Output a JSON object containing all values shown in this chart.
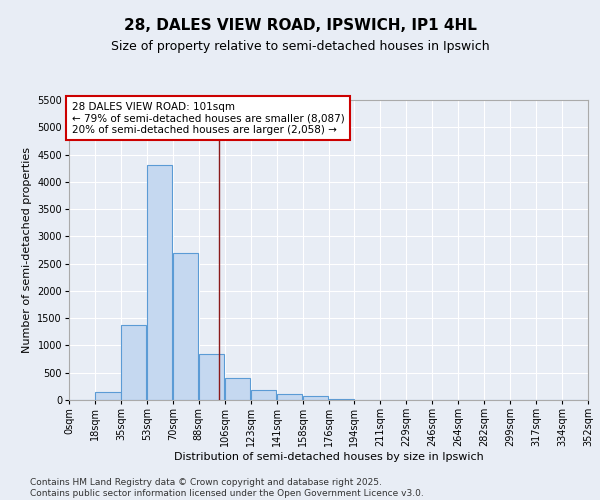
{
  "title": "28, DALES VIEW ROAD, IPSWICH, IP1 4HL",
  "subtitle": "Size of property relative to semi-detached houses in Ipswich",
  "xlabel": "Distribution of semi-detached houses by size in Ipswich",
  "ylabel": "Number of semi-detached properties",
  "footer_line1": "Contains HM Land Registry data © Crown copyright and database right 2025.",
  "footer_line2": "Contains public sector information licensed under the Open Government Licence v3.0.",
  "annotation_line1": "28 DALES VIEW ROAD: 101sqm",
  "annotation_line2": "← 79% of semi-detached houses are smaller (8,087)",
  "annotation_line3": "20% of semi-detached houses are larger (2,058) →",
  "bin_edges": [
    0,
    17.5,
    35,
    52.5,
    70,
    87.5,
    105,
    122.5,
    140,
    157.5,
    175,
    192.5,
    210,
    227.5,
    245,
    262.5,
    280,
    297.5,
    315,
    332.5,
    350
  ],
  "bin_labels": [
    "0sqm",
    "18sqm",
    "35sqm",
    "53sqm",
    "70sqm",
    "88sqm",
    "106sqm",
    "123sqm",
    "141sqm",
    "158sqm",
    "176sqm",
    "194sqm",
    "211sqm",
    "229sqm",
    "246sqm",
    "264sqm",
    "282sqm",
    "299sqm",
    "317sqm",
    "334sqm",
    "352sqm"
  ],
  "bar_heights": [
    5,
    150,
    1380,
    4300,
    2700,
    850,
    400,
    190,
    115,
    75,
    15,
    5,
    2,
    1,
    0,
    0,
    0,
    0,
    0,
    0
  ],
  "bar_color": "#c5d8f0",
  "bar_edge_color": "#5b9bd5",
  "ylim": [
    0,
    5500
  ],
  "yticks": [
    0,
    500,
    1000,
    1500,
    2000,
    2500,
    3000,
    3500,
    4000,
    4500,
    5000,
    5500
  ],
  "vline_x": 101,
  "vline_color": "#8b1a1a",
  "bg_color": "#e8edf5",
  "plot_bg_color": "#e8edf5",
  "grid_color": "#ffffff",
  "annotation_box_color": "#ffffff",
  "annotation_box_edge": "#cc0000",
  "title_fontsize": 11,
  "subtitle_fontsize": 9,
  "axis_label_fontsize": 8,
  "tick_fontsize": 7,
  "annotation_fontsize": 7.5,
  "footer_fontsize": 6.5
}
